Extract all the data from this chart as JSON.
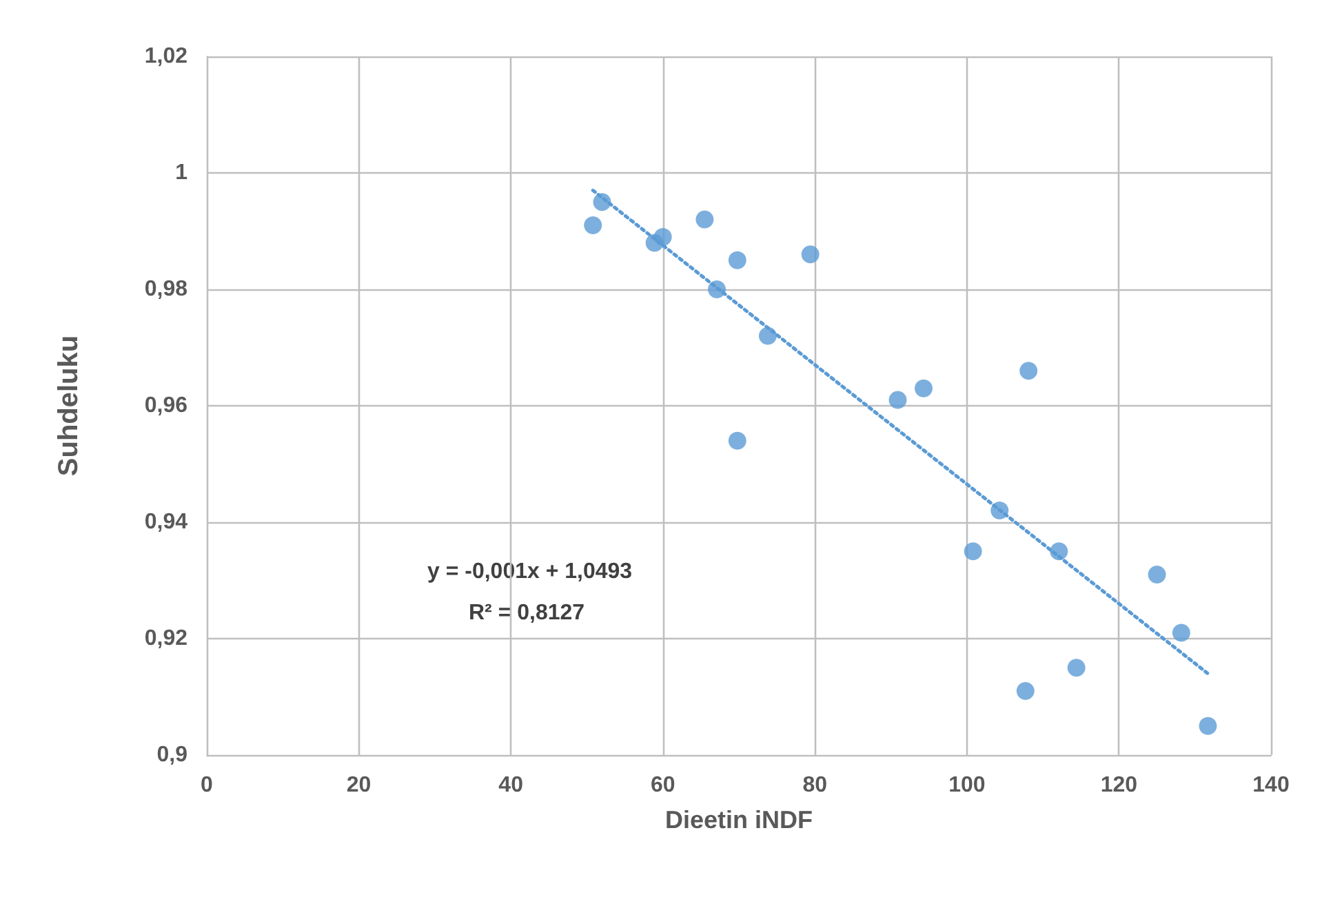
{
  "chart_data": {
    "type": "scatter",
    "xlabel": "Dieetin iNDF",
    "ylabel": "Suhdeluku",
    "annotations": [
      "y = -0,001x + 1,0493",
      "R² = 0,8127"
    ],
    "series": [
      {
        "color": "#5b9bd5",
        "marker": "circle",
        "x": [
          50.8,
          52.0,
          58.9,
          60.0,
          65.5,
          69.8,
          67.1,
          79.4,
          73.8,
          69.8,
          90.9,
          94.3,
          108.1,
          100.8,
          104.3,
          112.1,
          125.0,
          128.2,
          107.7,
          114.4,
          131.7
        ],
        "values": [
          0.991,
          0.995,
          0.988,
          0.989,
          0.992,
          0.985,
          0.98,
          0.986,
          0.972,
          0.954,
          0.961,
          0.963,
          0.966,
          0.935,
          0.942,
          0.935,
          0.931,
          0.921,
          0.911,
          0.915,
          0.905
        ]
      },
      {
        "type": "line",
        "color": "#5b9bd5",
        "line_style": "dotted",
        "marker": "none",
        "x": [
          50.8,
          131.7
        ],
        "values": [
          0.997,
          0.914
        ]
      }
    ],
    "xlim": [
      0,
      140
    ],
    "xticks": [
      0,
      20,
      40,
      60,
      80,
      100,
      120,
      140
    ],
    "ylim": [
      0.9,
      1.02
    ],
    "yticks": [
      {
        "value": 0.9,
        "label": "0,9"
      },
      {
        "value": 0.92,
        "label": "0,92"
      },
      {
        "value": 0.94,
        "label": "0,94"
      },
      {
        "value": 0.96,
        "label": "0,96"
      },
      {
        "value": 0.98,
        "label": "0,98"
      },
      {
        "value": 1,
        "label": "1"
      },
      {
        "value": 1.02,
        "label": "1,02"
      }
    ],
    "grid": true
  }
}
